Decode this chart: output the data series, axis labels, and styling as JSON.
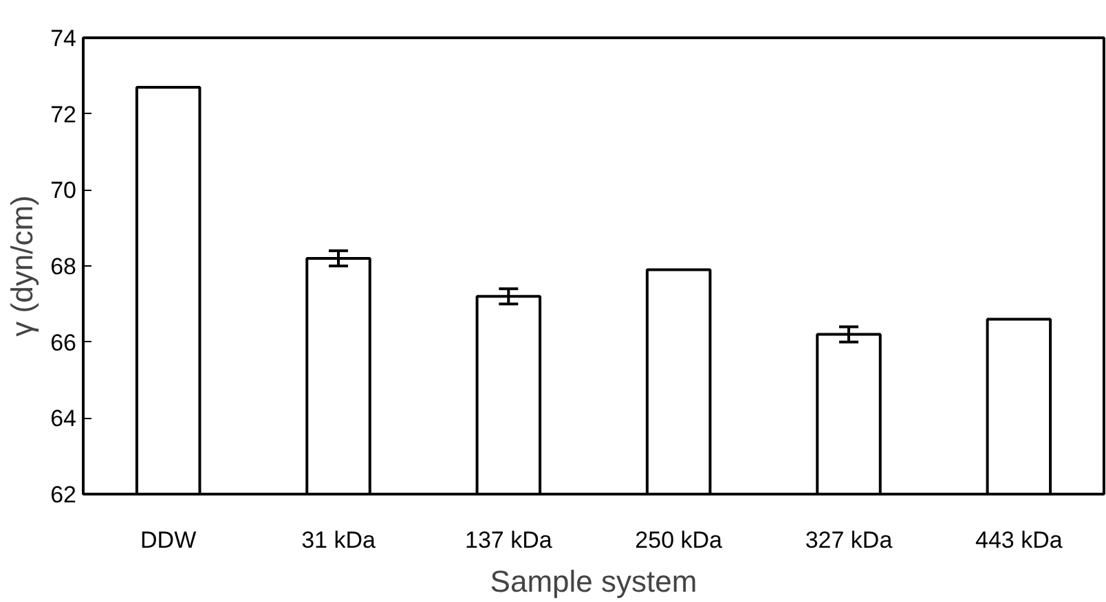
{
  "chart_data": {
    "type": "bar",
    "xlabel": "Sample system",
    "ylabel": "γ (dyn/cm)",
    "categories": [
      "DDW",
      "31 kDa",
      "137 kDa",
      "250 kDa",
      "327 kDa",
      "443 kDa"
    ],
    "values": [
      72.7,
      68.2,
      67.2,
      67.9,
      66.2,
      66.6
    ],
    "errors": [
      null,
      0.2,
      0.2,
      null,
      0.2,
      null
    ],
    "color": "#ffffff",
    "ylim": [
      62,
      74
    ],
    "yticks": [
      62,
      64,
      66,
      68,
      70,
      72,
      74
    ],
    "grid": false
  }
}
